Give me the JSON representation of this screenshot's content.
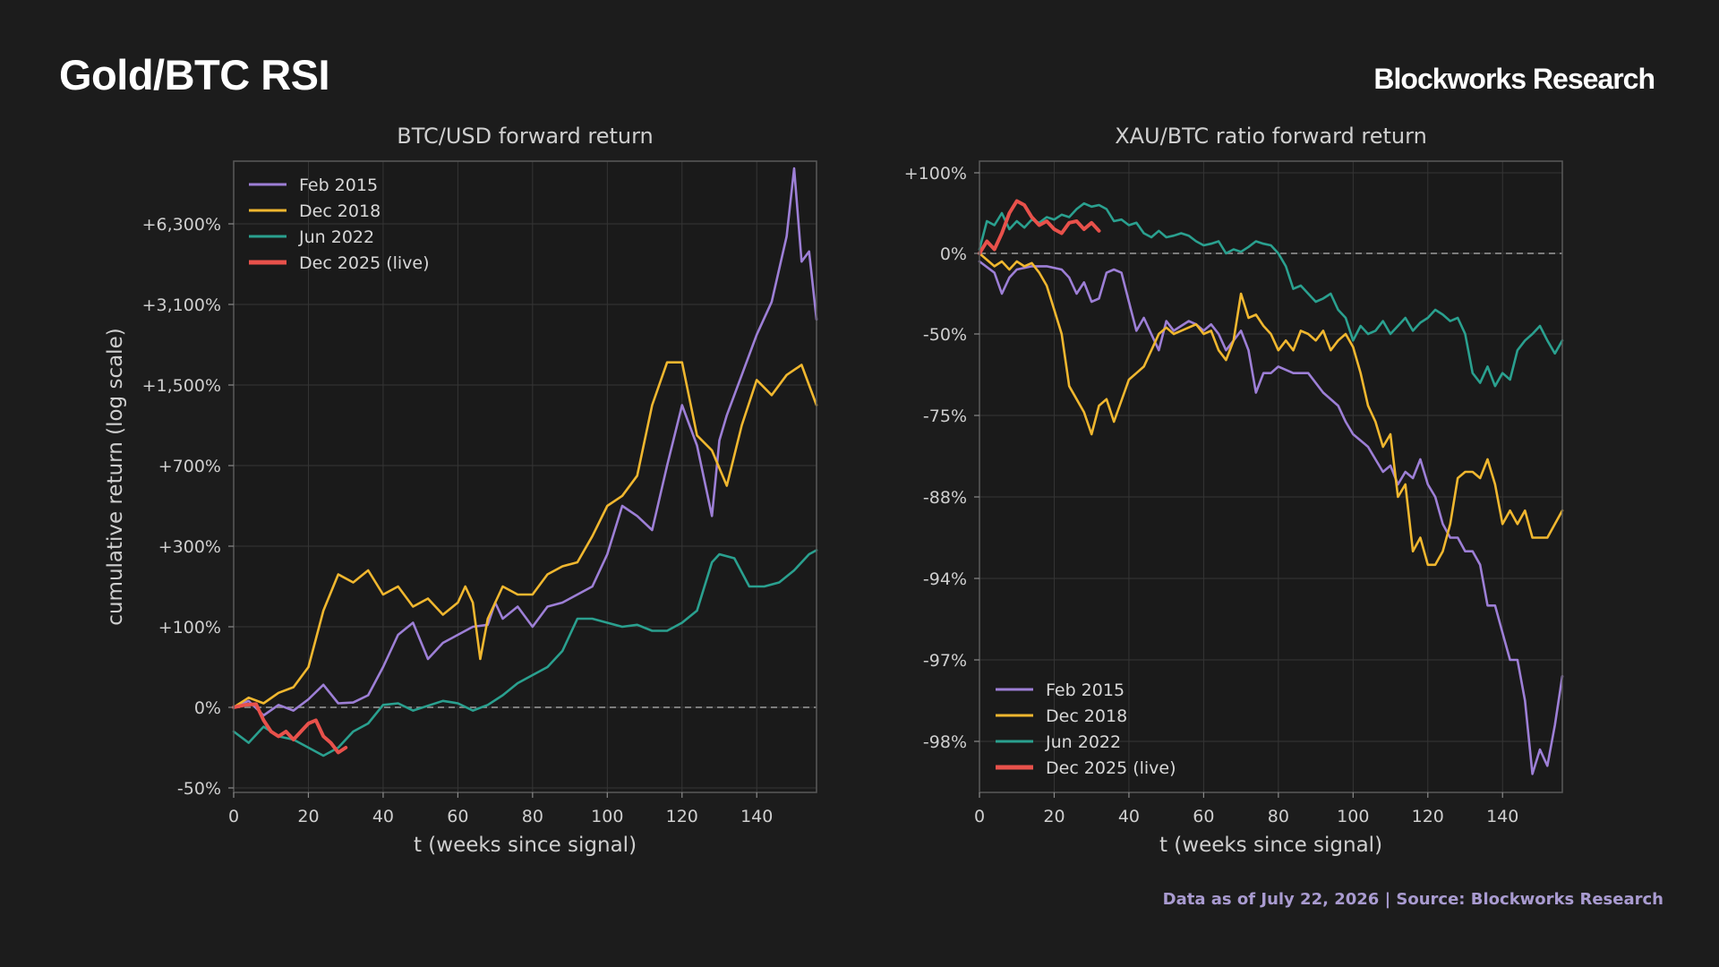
{
  "page": {
    "title": "Gold/BTC RSI",
    "brand": "Blockworks Research",
    "footer": "Data as of July 22, 2026 | Source: Blockworks Research"
  },
  "chart_data": [
    {
      "type": "line",
      "title": "BTC/USD forward return",
      "xlabel": "t (weeks since signal)",
      "ylabel": "cumulative return (log scale)",
      "y_scale": "log",
      "xlim": [
        0,
        156
      ],
      "x_ticks": [
        0,
        20,
        40,
        60,
        80,
        100,
        120,
        140
      ],
      "y_ticks": [
        {
          "label": "-50%",
          "value": -50
        },
        {
          "label": "0%",
          "value": 0
        },
        {
          "label": "+100%",
          "value": 100
        },
        {
          "label": "+300%",
          "value": 300
        },
        {
          "label": "+700%",
          "value": 700
        },
        {
          "label": "+1,500%",
          "value": 1500
        },
        {
          "label": "+3,100%",
          "value": 3100
        },
        {
          "label": "+6,300%",
          "value": 6300
        }
      ],
      "reference_line": 0,
      "grid": true,
      "legend_position": "top-left",
      "series": [
        {
          "name": "Feb 2015",
          "color": "#9d7fd6",
          "x": [
            0,
            4,
            8,
            12,
            16,
            20,
            24,
            28,
            32,
            36,
            40,
            44,
            48,
            52,
            56,
            60,
            64,
            68,
            70,
            72,
            76,
            80,
            84,
            88,
            92,
            96,
            100,
            104,
            108,
            112,
            116,
            120,
            124,
            128,
            130,
            132,
            136,
            140,
            144,
            148,
            150,
            152,
            154,
            156
          ],
          "y": [
            0,
            8,
            -5,
            3,
            -2,
            10,
            28,
            5,
            6,
            15,
            50,
            90,
            110,
            60,
            80,
            90,
            100,
            105,
            160,
            120,
            150,
            100,
            150,
            160,
            180,
            200,
            280,
            500,
            450,
            380,
            700,
            1300,
            900,
            450,
            950,
            1200,
            1700,
            2500,
            3200,
            5800,
            8500,
            4800,
            5200,
            2800
          ]
        },
        {
          "name": "Dec 2018",
          "color": "#f0b72f",
          "x": [
            0,
            4,
            8,
            12,
            16,
            20,
            24,
            28,
            32,
            36,
            40,
            44,
            48,
            52,
            56,
            60,
            62,
            64,
            66,
            68,
            72,
            76,
            80,
            84,
            88,
            92,
            96,
            100,
            104,
            108,
            112,
            116,
            120,
            124,
            128,
            132,
            136,
            140,
            144,
            148,
            152,
            156
          ],
          "y": [
            0,
            12,
            5,
            18,
            25,
            50,
            140,
            230,
            210,
            240,
            180,
            200,
            150,
            170,
            130,
            160,
            200,
            160,
            60,
            120,
            200,
            180,
            180,
            230,
            250,
            260,
            350,
            500,
            550,
            650,
            1300,
            1950,
            1950,
            1000,
            850,
            600,
            1100,
            1600,
            1400,
            1700,
            1900,
            1300
          ]
        },
        {
          "name": "Jun 2022",
          "color": "#2aa08f",
          "x": [
            0,
            4,
            8,
            12,
            16,
            20,
            24,
            28,
            32,
            36,
            40,
            44,
            48,
            52,
            56,
            60,
            64,
            68,
            72,
            76,
            80,
            84,
            88,
            92,
            96,
            100,
            104,
            108,
            112,
            116,
            120,
            124,
            128,
            130,
            134,
            138,
            142,
            146,
            150,
            154,
            156
          ],
          "y": [
            -15,
            -22,
            -12,
            -18,
            -20,
            -25,
            -30,
            -25,
            -15,
            -10,
            3,
            5,
            -2,
            2,
            8,
            5,
            -2,
            3,
            15,
            30,
            40,
            50,
            70,
            120,
            120,
            110,
            100,
            105,
            95,
            95,
            110,
            140,
            260,
            280,
            270,
            200,
            200,
            210,
            240,
            280,
            290
          ]
        },
        {
          "name": "Dec 2025 (live)",
          "color": "#e8514b",
          "x": [
            0,
            3,
            6,
            8,
            10,
            12,
            14,
            16,
            18,
            20,
            22,
            24,
            26,
            28,
            30
          ],
          "y": [
            0,
            3,
            4,
            -8,
            -15,
            -18,
            -15,
            -20,
            -15,
            -10,
            -8,
            -18,
            -22,
            -28,
            -25
          ]
        }
      ]
    },
    {
      "type": "line",
      "title": "XAU/BTC ratio forward return",
      "xlabel": "t (weeks since signal)",
      "ylabel": "",
      "xlim": [
        0,
        156
      ],
      "x_ticks": [
        0,
        20,
        40,
        60,
        80,
        100,
        120,
        140
      ],
      "y_ticks": [
        {
          "label": "+100%",
          "value": 100
        },
        {
          "label": "0%",
          "value": 0
        },
        {
          "label": "-50%",
          "value": -50
        },
        {
          "label": "-75%",
          "value": -75
        },
        {
          "label": "-88%",
          "value": -88
        },
        {
          "label": "-94%",
          "value": -94
        },
        {
          "label": "-97%",
          "value": -97
        },
        {
          "label": "-98%",
          "value": -98
        }
      ],
      "reference_line": 0,
      "grid": true,
      "legend_position": "bottom-left",
      "series": [
        {
          "name": "Feb 2015",
          "color": "#9d7fd6",
          "x": [
            0,
            4,
            6,
            8,
            10,
            14,
            18,
            22,
            24,
            26,
            28,
            30,
            32,
            34,
            36,
            38,
            40,
            42,
            44,
            48,
            50,
            52,
            54,
            56,
            58,
            60,
            62,
            64,
            66,
            68,
            70,
            72,
            74,
            76,
            78,
            80,
            84,
            88,
            92,
            96,
            98,
            100,
            102,
            104,
            106,
            108,
            110,
            112,
            114,
            116,
            118,
            120,
            122,
            124,
            126,
            128,
            130,
            132,
            134,
            136,
            138,
            140,
            142,
            144,
            146,
            148,
            150,
            152,
            154,
            156
          ],
          "y": [
            -5,
            -12,
            -25,
            -15,
            -10,
            -8,
            -8,
            -10,
            -15,
            -25,
            -18,
            -30,
            -28,
            -12,
            -10,
            -12,
            -30,
            -48,
            -40,
            -55,
            -42,
            -48,
            -45,
            -42,
            -44,
            -48,
            -44,
            -50,
            -55,
            -52,
            -48,
            -55,
            -68,
            -62,
            -62,
            -60,
            -62,
            -62,
            -68,
            -72,
            -76,
            -78,
            -79,
            -80,
            -82,
            -84,
            -83,
            -86,
            -84,
            -85,
            -82,
            -86,
            -88,
            -90,
            -91,
            -91,
            -92,
            -92,
            -93,
            -95,
            -95,
            -96,
            -97,
            -97,
            -97.5,
            -98.4,
            -98.1,
            -98.3,
            -97.8,
            -97.2
          ]
        },
        {
          "name": "Dec 2018",
          "color": "#f0b72f",
          "x": [
            0,
            4,
            6,
            8,
            10,
            12,
            14,
            16,
            18,
            20,
            22,
            24,
            26,
            28,
            30,
            32,
            34,
            36,
            40,
            44,
            46,
            48,
            50,
            52,
            54,
            56,
            58,
            60,
            62,
            64,
            66,
            68,
            70,
            72,
            74,
            76,
            78,
            80,
            82,
            84,
            86,
            88,
            90,
            92,
            94,
            96,
            98,
            100,
            102,
            104,
            106,
            108,
            110,
            112,
            114,
            116,
            118,
            120,
            122,
            124,
            126,
            128,
            130,
            132,
            134,
            136,
            138,
            140,
            142,
            144,
            146,
            148,
            150,
            152,
            154,
            156
          ],
          "y": [
            0,
            -8,
            -5,
            -10,
            -5,
            -8,
            -6,
            -12,
            -20,
            -35,
            -50,
            -66,
            -70,
            -74,
            -78,
            -72,
            -70,
            -76,
            -64,
            -60,
            -55,
            -50,
            -46,
            -50,
            -48,
            -46,
            -44,
            -50,
            -48,
            -55,
            -58,
            -52,
            -25,
            -40,
            -38,
            -45,
            -50,
            -55,
            -52,
            -55,
            -48,
            -50,
            -52,
            -48,
            -55,
            -52,
            -50,
            -54,
            -62,
            -72,
            -76,
            -80,
            -78,
            -88,
            -86,
            -92,
            -91,
            -93,
            -93,
            -92,
            -90,
            -85,
            -84,
            -84,
            -85,
            -82,
            -86,
            -90,
            -89,
            -90,
            -89,
            -91,
            -91,
            -91,
            -90,
            -89
          ]
        },
        {
          "name": "Jun 2022",
          "color": "#2aa08f",
          "x": [
            0,
            2,
            4,
            6,
            8,
            10,
            12,
            14,
            16,
            18,
            20,
            22,
            24,
            26,
            28,
            30,
            32,
            34,
            36,
            38,
            40,
            42,
            44,
            46,
            48,
            50,
            52,
            54,
            56,
            58,
            60,
            62,
            64,
            66,
            68,
            70,
            72,
            74,
            76,
            78,
            80,
            82,
            84,
            86,
            88,
            90,
            92,
            94,
            96,
            98,
            100,
            102,
            104,
            106,
            108,
            110,
            112,
            114,
            116,
            118,
            120,
            122,
            124,
            126,
            128,
            130,
            132,
            134,
            136,
            138,
            140,
            142,
            144,
            146,
            148,
            150,
            152,
            154,
            156
          ],
          "y": [
            5,
            40,
            35,
            50,
            30,
            40,
            32,
            42,
            38,
            45,
            42,
            48,
            45,
            55,
            62,
            58,
            60,
            55,
            40,
            42,
            35,
            38,
            25,
            20,
            28,
            20,
            22,
            25,
            22,
            15,
            10,
            12,
            15,
            0,
            5,
            2,
            8,
            15,
            12,
            10,
            0,
            -8,
            -22,
            -20,
            -25,
            -30,
            -28,
            -25,
            -35,
            -40,
            -52,
            -45,
            -50,
            -48,
            -42,
            -50,
            -45,
            -40,
            -48,
            -43,
            -40,
            -35,
            -38,
            -42,
            -40,
            -50,
            -62,
            -65,
            -60,
            -66,
            -62,
            -64,
            -55,
            -52,
            -50,
            -45,
            -52,
            -56,
            -52
          ]
        },
        {
          "name": "Dec 2025 (live)",
          "color": "#e8514b",
          "x": [
            0,
            2,
            4,
            6,
            8,
            10,
            12,
            14,
            16,
            18,
            20,
            22,
            24,
            26,
            28,
            30,
            32
          ],
          "y": [
            0,
            15,
            5,
            25,
            50,
            65,
            60,
            45,
            35,
            40,
            30,
            25,
            38,
            40,
            30,
            38,
            28
          ]
        }
      ]
    }
  ]
}
